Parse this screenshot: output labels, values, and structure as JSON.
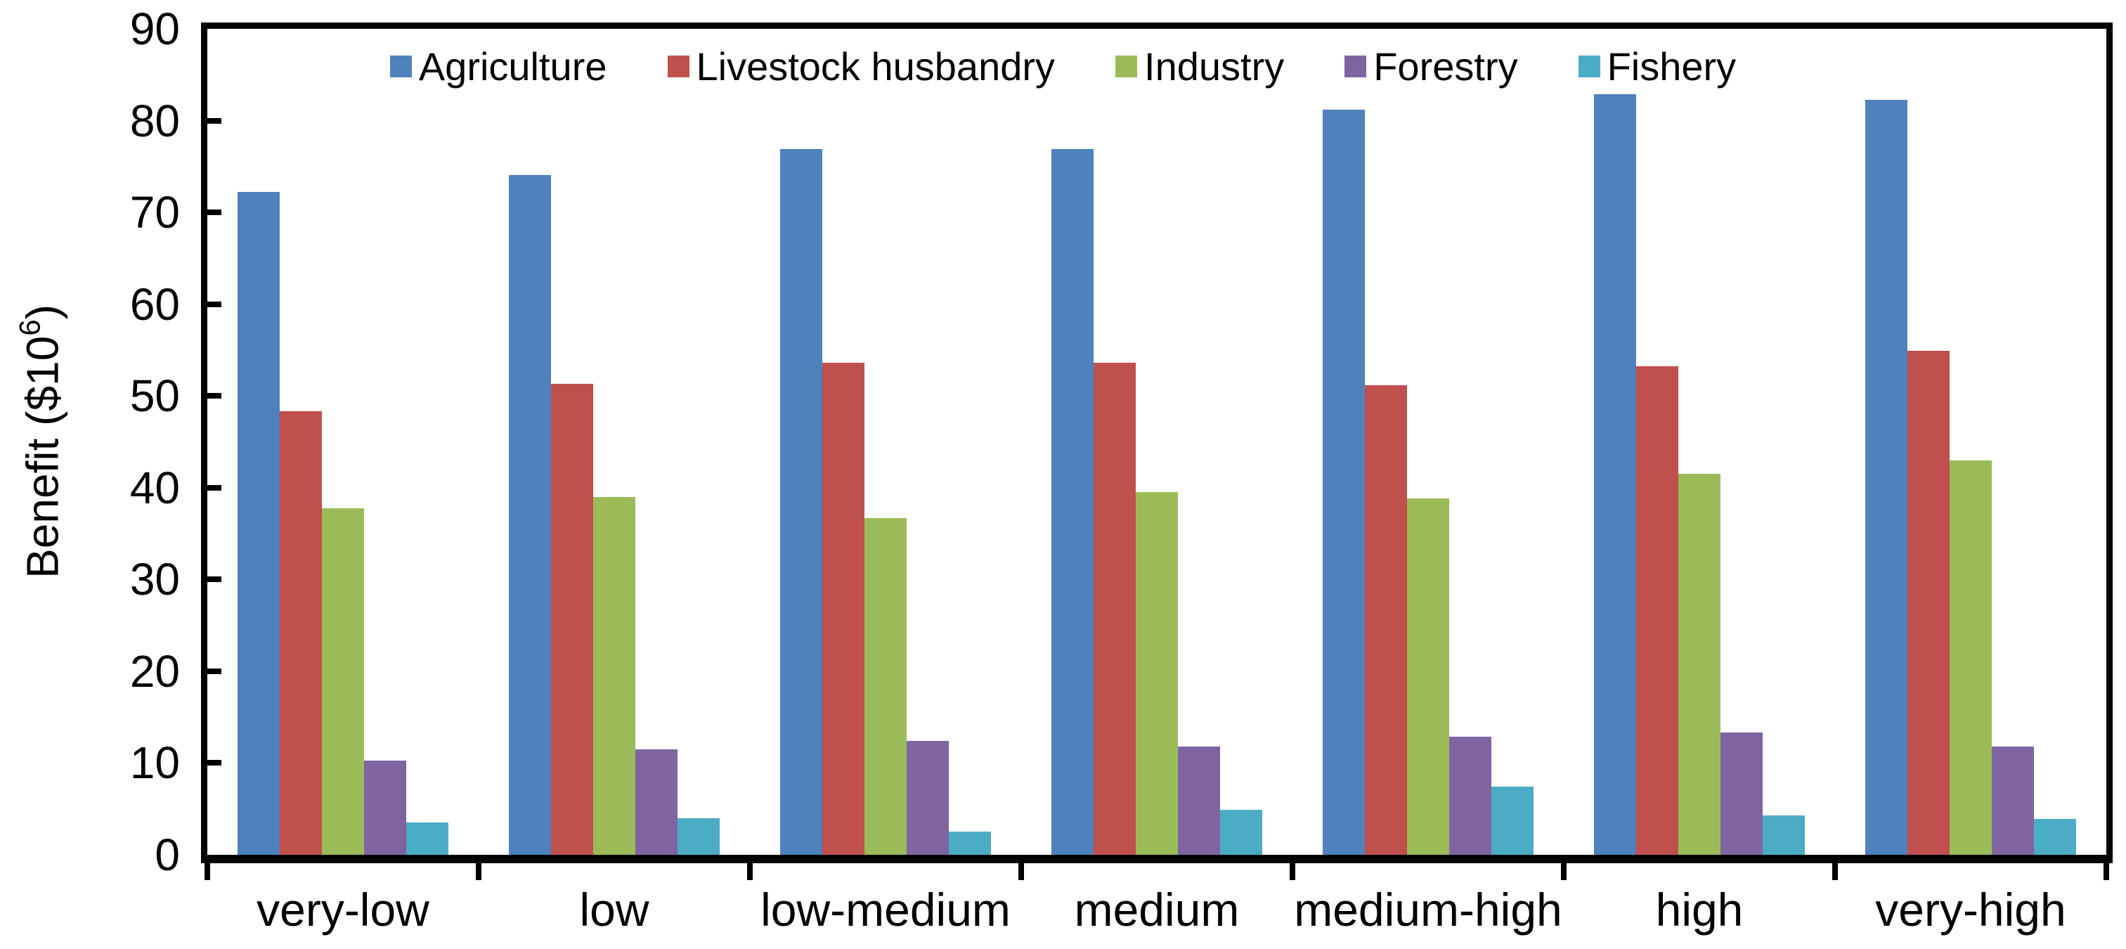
{
  "chart_data": {
    "type": "bar",
    "title": "",
    "ylabel": "Benefit ($10⁶)",
    "ylabel_parts": {
      "prefix": "Benefit ($10",
      "superscript": "6",
      "suffix": ")"
    },
    "xlabel": "",
    "categories": [
      "very-low",
      "low",
      "low-medium",
      "medium",
      "medium-high",
      "high",
      "very-high"
    ],
    "series": [
      {
        "name": "Agriculture",
        "color": "#4F81BD",
        "values": [
          72.2,
          74.1,
          76.9,
          76.9,
          81.2,
          82.9,
          82.3
        ]
      },
      {
        "name": "Livestock husbandry",
        "color": "#C0504D",
        "values": [
          48.3,
          51.3,
          53.6,
          53.6,
          51.2,
          53.2,
          54.9
        ]
      },
      {
        "name": "Industry",
        "color": "#9BBB59",
        "values": [
          37.8,
          39.0,
          36.7,
          39.5,
          38.8,
          41.5,
          43.0
        ]
      },
      {
        "name": "Forestry",
        "color": "#8064A2",
        "values": [
          10.3,
          11.5,
          12.4,
          11.8,
          12.9,
          13.3,
          11.8
        ]
      },
      {
        "name": "Fishery",
        "color": "#4BACC6",
        "values": [
          3.5,
          4.0,
          2.5,
          4.9,
          7.4,
          4.3,
          3.9
        ]
      }
    ],
    "ylim": [
      0,
      90
    ],
    "yticks": [
      0,
      10,
      20,
      30,
      40,
      50,
      60,
      70,
      80,
      90
    ],
    "legend_position": "top-center",
    "grid": false,
    "axis_color": "#000000",
    "text_color": "#000000",
    "background_color": "#FFFFFF"
  }
}
